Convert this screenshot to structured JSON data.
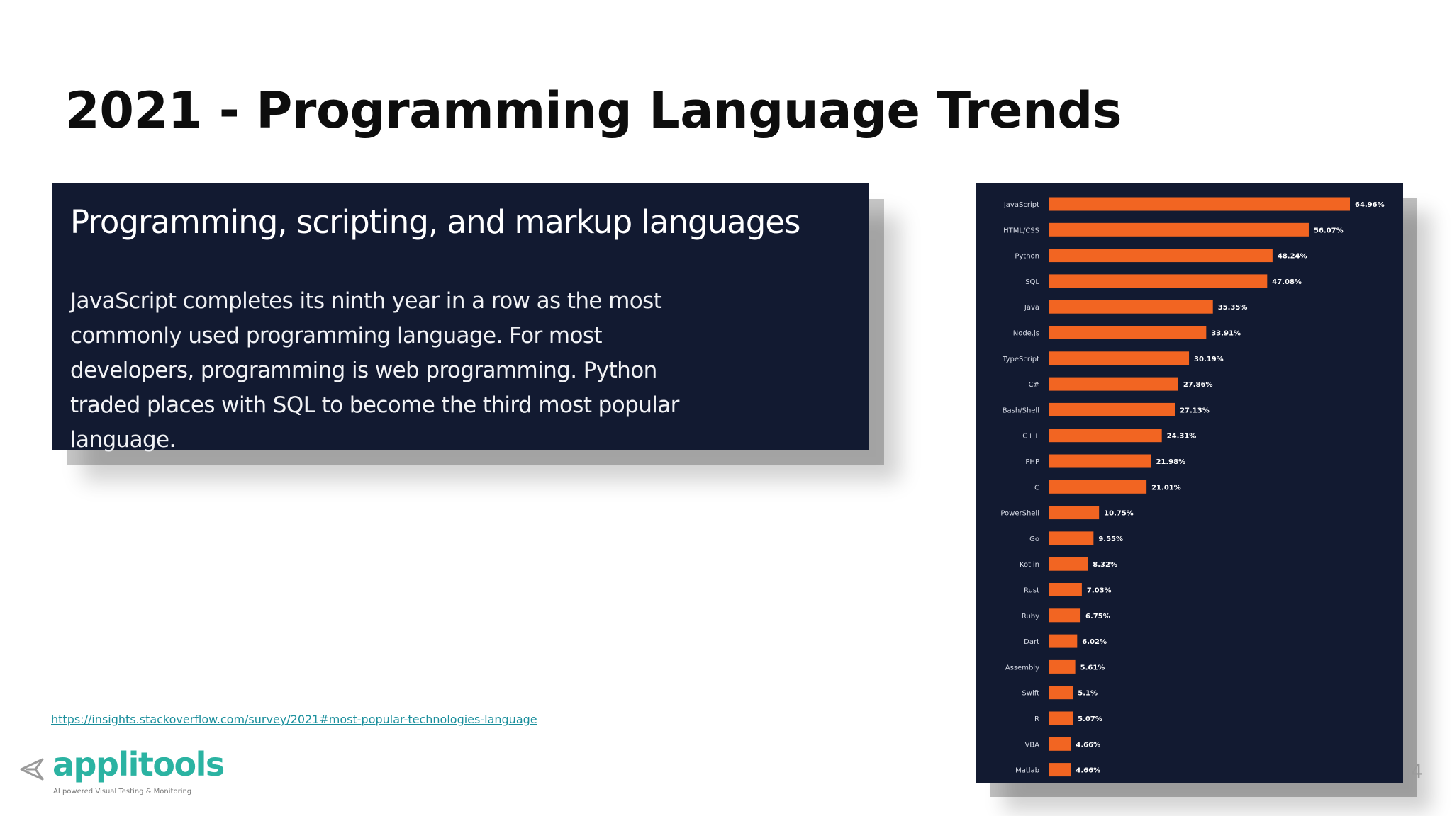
{
  "slide": {
    "title": "2021 - Programming Language Trends",
    "page_number": "4"
  },
  "survey_box": {
    "heading": "Programming, scripting, and markup languages",
    "body": "JavaScript completes its ninth year in a row as the most commonly used programming language. For most developers, programming is web programming. Python traded places with SQL to become the third most popular language."
  },
  "source": {
    "link_text": "https://insights.stackoverflow.com/survey/2021#most-popular-technologies-language"
  },
  "logo": {
    "name": "applitools",
    "tagline": "AI powered Visual Testing & Monitoring"
  },
  "colors": {
    "bar": "#f26522",
    "chart_background": "#121a31",
    "title": "#0d0d0d",
    "link": "#1b8f9c",
    "logo": "#2bb3a2"
  },
  "chart_data": {
    "type": "bar",
    "orientation": "horizontal",
    "categories": [
      "JavaScript",
      "HTML/CSS",
      "Python",
      "SQL",
      "Java",
      "Node.js",
      "TypeScript",
      "C#",
      "Bash/Shell",
      "C++",
      "PHP",
      "C",
      "PowerShell",
      "Go",
      "Kotlin",
      "Rust",
      "Ruby",
      "Dart",
      "Assembly",
      "Swift",
      "R",
      "VBA",
      "Matlab"
    ],
    "values": [
      64.96,
      56.07,
      48.24,
      47.08,
      35.35,
      33.91,
      30.19,
      27.86,
      27.13,
      24.31,
      21.98,
      21.01,
      10.75,
      9.55,
      8.32,
      7.03,
      6.75,
      6.02,
      5.61,
      5.1,
      5.07,
      4.66,
      4.66
    ],
    "value_labels": [
      "64.96%",
      "56.07%",
      "48.24%",
      "47.08%",
      "35.35%",
      "33.91%",
      "30.19%",
      "27.86%",
      "27.13%",
      "24.31%",
      "21.98%",
      "21.01%",
      "10.75%",
      "9.55%",
      "8.32%",
      "7.03%",
      "6.75%",
      "6.02%",
      "5.61%",
      "5.1%",
      "5.07%",
      "4.66%",
      "4.66%"
    ],
    "unit": "%",
    "xlim": [
      0,
      65
    ],
    "grid": false,
    "legend": "none"
  }
}
